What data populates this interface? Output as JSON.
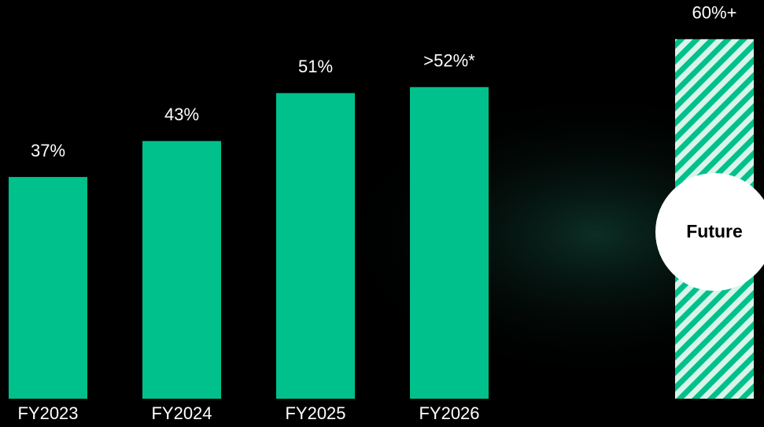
{
  "chart_data": {
    "type": "bar",
    "categories": [
      "FY2023",
      "FY2024",
      "FY2025",
      "FY2026",
      null
    ],
    "values": [
      37,
      43,
      51,
      52,
      60
    ],
    "value_labels": [
      "37%",
      "43%",
      "51%",
      ">52%*",
      "60%+"
    ],
    "color": "#00c08b",
    "patterns": [
      "solid",
      "solid",
      "solid",
      "solid",
      "hatched"
    ],
    "annotation": "Future"
  }
}
